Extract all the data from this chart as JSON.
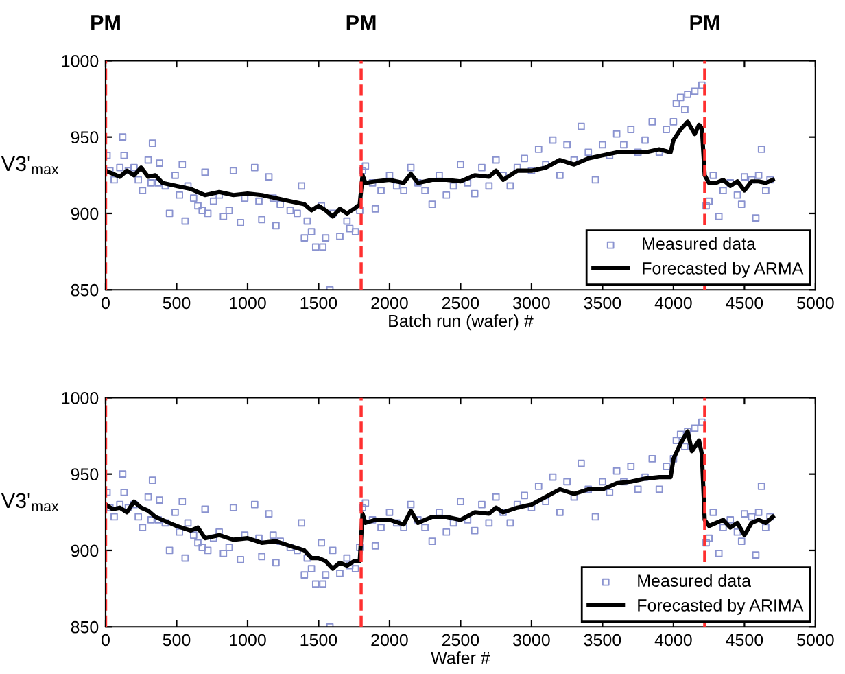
{
  "chart_data": [
    {
      "type": "scatter",
      "xlabel": "Batch run (wafer) #",
      "ylabel": "V3'$_{max}$",
      "xlim": [
        0,
        5000
      ],
      "ylim": [
        850,
        1000
      ],
      "xticks": [
        0,
        500,
        1000,
        1500,
        2000,
        2500,
        3000,
        3500,
        4000,
        4500,
        5000
      ],
      "yticks": [
        850,
        900,
        950,
        1000
      ],
      "grid": false,
      "legend": "bottom right",
      "ref_lines": [
        {
          "axis": "x",
          "value": 0,
          "label": "PM",
          "color": "#ff3030",
          "line_style": "dashed"
        },
        {
          "axis": "x",
          "value": 1800,
          "label": "PM",
          "color": "#ff3030",
          "line_style": "dashed"
        },
        {
          "axis": "x",
          "value": 4220,
          "label": "PM",
          "color": "#ff3030",
          "line_style": "dashed"
        }
      ],
      "series": [
        {
          "name": "Measured data",
          "type": "scatter",
          "marker": "square",
          "color": "#8a93d0",
          "x": [
            10,
            30,
            60,
            100,
            120,
            130,
            160,
            200,
            230,
            260,
            300,
            320,
            330,
            370,
            380,
            420,
            450,
            490,
            520,
            540,
            560,
            580,
            620,
            650,
            680,
            700,
            720,
            760,
            800,
            830,
            870,
            900,
            950,
            980,
            1050,
            1080,
            1100,
            1150,
            1180,
            1200,
            1230,
            1300,
            1350,
            1380,
            1400,
            1420,
            1450,
            1480,
            1520,
            1530,
            1550,
            1580,
            1600,
            1650,
            1700,
            1720,
            1760,
            1790,
            1810,
            1830,
            1880,
            1900,
            1940,
            2000,
            2050,
            2100,
            2150,
            2200,
            2250,
            2300,
            2350,
            2400,
            2450,
            2500,
            2550,
            2600,
            2650,
            2700,
            2750,
            2800,
            2850,
            2900,
            2950,
            3000,
            3050,
            3100,
            3150,
            3200,
            3250,
            3300,
            3350,
            3400,
            3450,
            3500,
            3550,
            3600,
            3650,
            3700,
            3750,
            3800,
            3850,
            3900,
            3950,
            4000,
            4020,
            4050,
            4080,
            4100,
            4150,
            4200,
            4230,
            4250,
            4280,
            4320,
            4350,
            4400,
            4450,
            4480,
            4500,
            4550,
            4580,
            4600,
            4620,
            4650,
            4680
          ],
          "values": [
            938,
            928,
            922,
            930,
            950,
            938,
            928,
            930,
            922,
            915,
            935,
            920,
            946,
            920,
            933,
            918,
            900,
            925,
            912,
            932,
            895,
            918,
            910,
            905,
            902,
            927,
            900,
            908,
            912,
            898,
            902,
            928,
            894,
            910,
            930,
            908,
            896,
            924,
            910,
            892,
            906,
            902,
            900,
            918,
            884,
            895,
            888,
            878,
            905,
            878,
            884,
            850,
            900,
            885,
            895,
            890,
            888,
            902,
            928,
            931,
            920,
            903,
            915,
            925,
            918,
            915,
            930,
            920,
            915,
            906,
            925,
            912,
            918,
            932,
            920,
            913,
            930,
            918,
            935,
            925,
            918,
            930,
            936,
            928,
            942,
            932,
            948,
            925,
            945,
            935,
            957,
            940,
            922,
            945,
            938,
            952,
            945,
            955,
            940,
            948,
            960,
            940,
            955,
            960,
            972,
            976,
            968,
            978,
            980,
            984,
            905,
            908,
            925,
            898,
            915,
            920,
            912,
            906,
            924,
            922,
            897,
            925,
            942,
            915,
            922
          ]
        },
        {
          "name": "Forecasted by ARMA",
          "type": "line",
          "marker": "none",
          "color": "#000000",
          "x": [
            0,
            50,
            100,
            150,
            200,
            250,
            300,
            350,
            400,
            500,
            600,
            700,
            800,
            900,
            1000,
            1100,
            1200,
            1300,
            1400,
            1450,
            1500,
            1550,
            1600,
            1650,
            1700,
            1750,
            1790,
            1810,
            1830,
            1900,
            2000,
            2100,
            2150,
            2200,
            2300,
            2400,
            2500,
            2600,
            2700,
            2750,
            2800,
            2900,
            3000,
            3100,
            3200,
            3300,
            3400,
            3500,
            3600,
            3700,
            3800,
            3900,
            3980,
            4000,
            4050,
            4100,
            4150,
            4180,
            4200,
            4220,
            4250,
            4300,
            4350,
            4400,
            4450,
            4500,
            4550,
            4600,
            4650,
            4700
          ],
          "values": [
            928,
            926,
            924,
            928,
            925,
            930,
            924,
            925,
            920,
            918,
            916,
            912,
            914,
            912,
            913,
            912,
            910,
            908,
            906,
            902,
            905,
            902,
            898,
            903,
            900,
            903,
            906,
            925,
            920,
            921,
            922,
            920,
            926,
            920,
            922,
            922,
            921,
            925,
            924,
            928,
            922,
            928,
            928,
            930,
            935,
            932,
            936,
            938,
            940,
            940,
            940,
            942,
            940,
            948,
            955,
            960,
            952,
            958,
            956,
            925,
            920,
            920,
            922,
            918,
            921,
            915,
            921,
            921,
            920,
            922
          ]
        }
      ]
    },
    {
      "type": "scatter",
      "xlabel": "Wafer #",
      "ylabel": "V3'$_{max}$",
      "xlim": [
        0,
        5000
      ],
      "ylim": [
        850,
        1000
      ],
      "xticks": [
        0,
        500,
        1000,
        1500,
        2000,
        2500,
        3000,
        3500,
        4000,
        4500,
        5000
      ],
      "yticks": [
        850,
        900,
        950,
        1000
      ],
      "grid": false,
      "legend": "bottom right",
      "ref_lines": [
        {
          "axis": "x",
          "value": 0,
          "color": "#ff3030",
          "line_style": "dashed"
        },
        {
          "axis": "x",
          "value": 1800,
          "color": "#ff3030",
          "line_style": "dashed"
        },
        {
          "axis": "x",
          "value": 4220,
          "color": "#ff3030",
          "line_style": "dashed"
        }
      ],
      "series": [
        {
          "name": "Measured data",
          "type": "scatter",
          "marker": "square",
          "color": "#8a93d0",
          "x": [
            10,
            30,
            60,
            100,
            120,
            130,
            160,
            200,
            230,
            260,
            300,
            320,
            330,
            370,
            380,
            420,
            450,
            490,
            520,
            540,
            560,
            580,
            620,
            650,
            680,
            700,
            720,
            760,
            800,
            830,
            870,
            900,
            950,
            980,
            1050,
            1080,
            1100,
            1150,
            1180,
            1200,
            1230,
            1300,
            1350,
            1380,
            1400,
            1420,
            1450,
            1480,
            1520,
            1530,
            1550,
            1580,
            1600,
            1650,
            1700,
            1720,
            1760,
            1790,
            1810,
            1830,
            1880,
            1900,
            1940,
            2000,
            2050,
            2100,
            2150,
            2200,
            2250,
            2300,
            2350,
            2400,
            2450,
            2500,
            2550,
            2600,
            2650,
            2700,
            2750,
            2800,
            2850,
            2900,
            2950,
            3000,
            3050,
            3100,
            3150,
            3200,
            3250,
            3300,
            3350,
            3400,
            3450,
            3500,
            3550,
            3600,
            3650,
            3700,
            3750,
            3800,
            3850,
            3900,
            3950,
            4000,
            4020,
            4050,
            4080,
            4100,
            4150,
            4200,
            4230,
            4250,
            4280,
            4320,
            4350,
            4400,
            4450,
            4480,
            4500,
            4550,
            4580,
            4600,
            4620,
            4650,
            4680
          ],
          "values": [
            938,
            928,
            922,
            930,
            950,
            938,
            928,
            930,
            922,
            915,
            935,
            920,
            946,
            920,
            933,
            918,
            900,
            925,
            912,
            932,
            895,
            918,
            910,
            905,
            902,
            927,
            900,
            908,
            912,
            898,
            902,
            928,
            894,
            910,
            930,
            908,
            896,
            924,
            910,
            892,
            906,
            902,
            900,
            918,
            884,
            895,
            888,
            878,
            905,
            878,
            884,
            850,
            900,
            885,
            895,
            890,
            888,
            902,
            928,
            931,
            920,
            903,
            915,
            925,
            918,
            915,
            930,
            920,
            915,
            906,
            925,
            912,
            918,
            932,
            920,
            913,
            930,
            918,
            935,
            925,
            918,
            930,
            936,
            928,
            942,
            932,
            948,
            925,
            945,
            935,
            957,
            940,
            922,
            945,
            938,
            952,
            945,
            955,
            940,
            948,
            960,
            940,
            955,
            960,
            972,
            976,
            968,
            978,
            980,
            984,
            905,
            908,
            925,
            898,
            915,
            920,
            912,
            906,
            924,
            922,
            897,
            925,
            942,
            915,
            922
          ]
        },
        {
          "name": "Forecasted by ARIMA",
          "type": "line",
          "marker": "none",
          "color": "#000000",
          "x": [
            0,
            50,
            100,
            150,
            200,
            250,
            300,
            350,
            400,
            500,
            600,
            650,
            700,
            800,
            900,
            1000,
            1100,
            1200,
            1300,
            1400,
            1450,
            1500,
            1550,
            1600,
            1650,
            1700,
            1750,
            1790,
            1810,
            1830,
            1900,
            2000,
            2100,
            2150,
            2200,
            2300,
            2400,
            2500,
            2600,
            2700,
            2750,
            2800,
            2900,
            3000,
            3100,
            3200,
            3300,
            3400,
            3500,
            3600,
            3700,
            3800,
            3900,
            3980,
            4000,
            4050,
            4100,
            4130,
            4180,
            4200,
            4220,
            4250,
            4300,
            4350,
            4400,
            4450,
            4500,
            4550,
            4600,
            4650,
            4700
          ],
          "values": [
            930,
            927,
            928,
            925,
            932,
            928,
            926,
            922,
            920,
            916,
            913,
            915,
            908,
            910,
            907,
            908,
            905,
            906,
            903,
            900,
            895,
            895,
            893,
            888,
            892,
            890,
            893,
            893,
            924,
            918,
            920,
            920,
            917,
            926,
            918,
            922,
            922,
            920,
            925,
            924,
            928,
            925,
            928,
            930,
            935,
            940,
            937,
            940,
            940,
            944,
            945,
            947,
            948,
            948,
            960,
            970,
            978,
            965,
            972,
            963,
            920,
            916,
            918,
            920,
            915,
            918,
            910,
            918,
            920,
            918,
            922
          ]
        }
      ]
    }
  ]
}
